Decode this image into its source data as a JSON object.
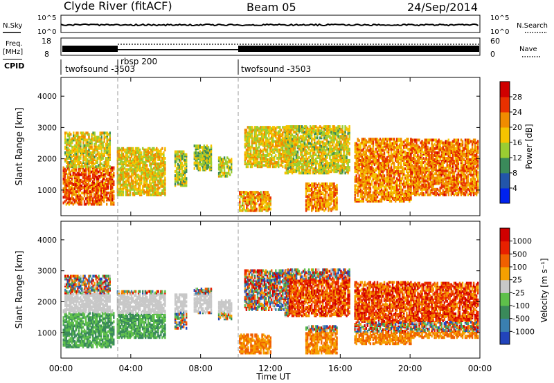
{
  "header": {
    "station": "Clyde River (fitACF)",
    "beam": "Beam 05",
    "date": "24/Sep/2014"
  },
  "top_panels": {
    "nsky_label": "N.Sky",
    "nsky_ticks": [
      "10^5",
      "10^0"
    ],
    "nsearch_label": "N.Search",
    "nsearch_ticks": [
      "10^5",
      "10^0"
    ],
    "freq_label": "Freq.",
    "freq_unit": "[MHz]",
    "freq_ticks": [
      "18",
      "8"
    ],
    "nave_label": "Nave",
    "nave_ticks": [
      "60",
      "0"
    ],
    "cpid_label": "CPID",
    "cpid_segments": [
      {
        "label": "twofsound -3503",
        "start_hr": 0,
        "end_hr": 3.1
      },
      {
        "label": "rbsp 200",
        "start_hr": 3.1,
        "end_hr": 10.0
      },
      {
        "label": "twofsound -3503",
        "start_hr": 10.0,
        "end_hr": 24
      }
    ]
  },
  "chart_data": [
    {
      "type": "heatmap",
      "name": "power",
      "xlabel": "",
      "ylabel": "Slant Range [km]",
      "xlim": [
        0,
        24
      ],
      "ylim": [
        180,
        4600
      ],
      "y_ticks": [
        "1000",
        "2000",
        "3000",
        "4000"
      ],
      "colorbar": {
        "label": "Power [dB]",
        "ticks": [
          "4",
          "8",
          "12",
          "16",
          "20",
          "24",
          "28"
        ],
        "colors": [
          "#0022ee",
          "#2255aa",
          "#3a8a5a",
          "#9acd32",
          "#f5c400",
          "#f08c00",
          "#e83000",
          "#d00000"
        ]
      }
    },
    {
      "type": "heatmap",
      "name": "velocity",
      "xlabel": "Time UT",
      "ylabel": "Slant Range [km]",
      "xlim": [
        0,
        24
      ],
      "ylim": [
        180,
        4600
      ],
      "x_ticks": [
        "00:00",
        "04:00",
        "08:00",
        "12:00",
        "16:00",
        "20:00",
        "00:00"
      ],
      "y_ticks": [
        "1000",
        "2000",
        "3000",
        "4000"
      ],
      "colorbar": {
        "label": "Velocity [m s⁻¹]",
        "ticks": [
          "1000",
          "500",
          "100",
          "25",
          "-25",
          "-100",
          "-500",
          "-1000"
        ],
        "colors": [
          "#2244bb",
          "#3a7fb0",
          "#3a8a5a",
          "#5ec04a",
          "#c8c8c8",
          "#f5a000",
          "#f06000",
          "#e82000",
          "#d00000"
        ]
      }
    }
  ]
}
